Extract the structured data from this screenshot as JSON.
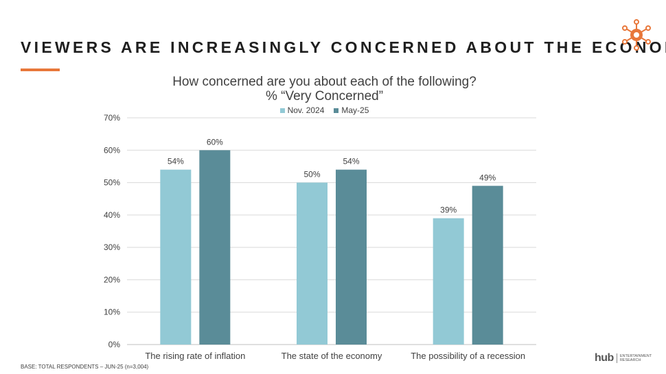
{
  "slide": {
    "title": "VIEWERS ARE INCREASINGLY CONCERNED ABOUT THE ECONOMY",
    "accent_color": "#e8773a",
    "footnote": "BASE: TOTAL RESPONDENTS – JUN-25 (n=3,004)",
    "logo_icon": "sun-network-icon",
    "brand": {
      "word": "hub",
      "sub_line1": "ENTERTAINMENT",
      "sub_line2": "RESEARCH"
    }
  },
  "chart_data": {
    "type": "bar",
    "title_line1": "How concerned are you about each of the following?",
    "title_line2": "% “Very Concerned”",
    "categories": [
      "The rising rate of inflation",
      "The state of the economy",
      "The possibility of a recession"
    ],
    "series": [
      {
        "name": "Nov. 2024",
        "color": "#92c9d5",
        "values": [
          54,
          50,
          39
        ],
        "labels": [
          "54%",
          "50%",
          "39%"
        ]
      },
      {
        "name": "May-25",
        "color": "#5a8c98",
        "values": [
          60,
          54,
          49
        ],
        "labels": [
          "60%",
          "54%",
          "49%"
        ]
      }
    ],
    "ylim": [
      0,
      70
    ],
    "yticks": [
      0,
      10,
      20,
      30,
      40,
      50,
      60,
      70
    ],
    "ytick_labels": [
      "0%",
      "10%",
      "20%",
      "30%",
      "40%",
      "50%",
      "60%",
      "70%"
    ],
    "grid": true,
    "legend_position": "top-center",
    "xlabel": "",
    "ylabel": ""
  }
}
